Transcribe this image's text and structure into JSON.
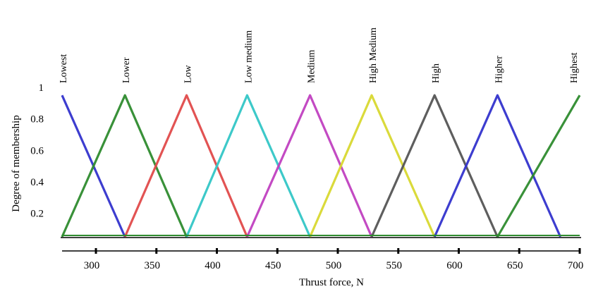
{
  "chart_data": {
    "type": "line",
    "title": "",
    "xlabel": "Thrust force, N",
    "ylabel": "Degree of membership",
    "xlim": [
      272,
      700
    ],
    "ylim": [
      0.05,
      1.0
    ],
    "x_ticks": [
      300,
      350,
      400,
      450,
      500,
      550,
      600,
      650,
      700
    ],
    "x_tick_labels": [
      "300",
      "350",
      "400",
      "450",
      "500",
      "550",
      "600",
      "650",
      "700"
    ],
    "y_ticks": [
      0.2,
      0.4,
      0.6,
      0.8,
      1.0
    ],
    "y_tick_labels": [
      "0.2",
      "0.4",
      "0.6",
      "0.8",
      "1"
    ],
    "grid": false,
    "legend": "none",
    "series": [
      {
        "name": "Lowest",
        "color": "#3333cc",
        "x": [
          272,
          324
        ],
        "y": [
          0.95,
          0.05
        ]
      },
      {
        "name": "Lower",
        "color": "#2e8b2e",
        "x": [
          272,
          324,
          375
        ],
        "y": [
          0.05,
          0.95,
          0.05
        ]
      },
      {
        "name": "Low",
        "color": "#e04a4a",
        "x": [
          324,
          375,
          425
        ],
        "y": [
          0.05,
          0.95,
          0.05
        ]
      },
      {
        "name": "Low medium",
        "color": "#33c6c6",
        "x": [
          375,
          425,
          477
        ],
        "y": [
          0.05,
          0.95,
          0.05
        ]
      },
      {
        "name": "Medium",
        "color": "#c040c0",
        "x": [
          425,
          477,
          528
        ],
        "y": [
          0.05,
          0.95,
          0.05
        ]
      },
      {
        "name": "High Medium",
        "color": "#d8d830",
        "x": [
          477,
          528,
          580
        ],
        "y": [
          0.05,
          0.95,
          0.05
        ]
      },
      {
        "name": "High",
        "color": "#555555",
        "x": [
          528,
          580,
          632
        ],
        "y": [
          0.05,
          0.95,
          0.05
        ]
      },
      {
        "name": "Higher",
        "color": "#3333cc",
        "x": [
          580,
          632,
          684
        ],
        "y": [
          0.05,
          0.95,
          0.05
        ]
      },
      {
        "name": "Highest",
        "color": "#2e8b2e",
        "x": [
          632,
          700
        ],
        "y": [
          0.05,
          0.95
        ]
      }
    ],
    "peaks": [
      272,
      324,
      375,
      425,
      477,
      528,
      580,
      632,
      700
    ]
  }
}
